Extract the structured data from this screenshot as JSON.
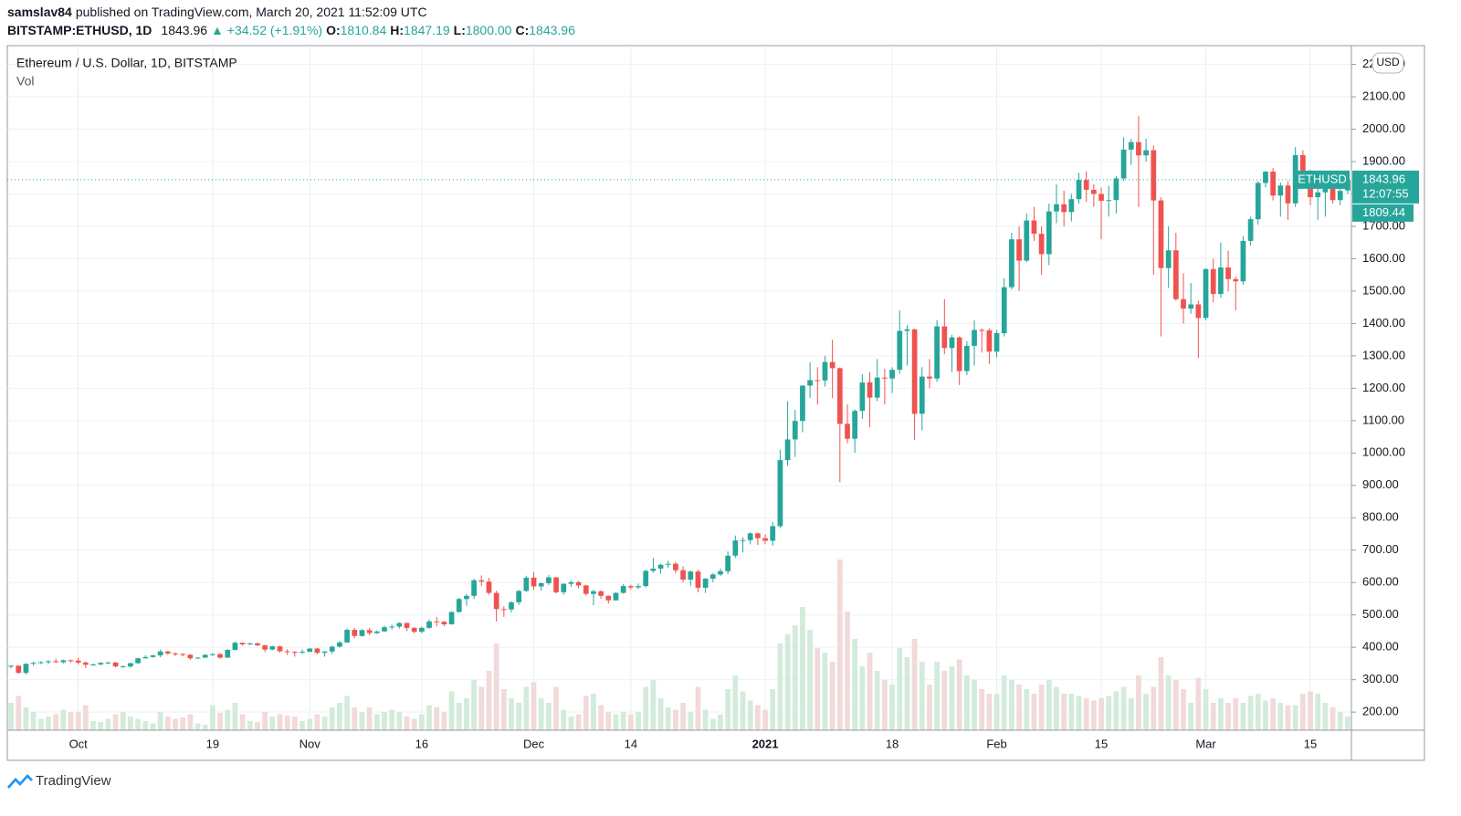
{
  "header": {
    "author": "samslav84",
    "published": "published on TradingView.com, March 20, 2021 11:52:09 UTC",
    "symbol": "BITSTAMP:ETHUSD, 1D",
    "price": "1843.96",
    "change": "▲ +34.52 (+1.91%)",
    "quote": [
      {
        "label": "O:",
        "value": "1810.84"
      },
      {
        "label": "H:",
        "value": "1847.19"
      },
      {
        "label": "L:",
        "value": "1800.00"
      },
      {
        "label": "C:",
        "value": "1843.96"
      }
    ]
  },
  "chart_data": {
    "type": "candlestick",
    "title": "Ethereum / U.S. Dollar, 1D, BITSTAMP",
    "volume_label": "Vol",
    "currency": "USD",
    "symbol_tag": "ETHUSD",
    "last_price": 1843.96,
    "countdown": "12:07:55",
    "prev_close": 1809.44,
    "up_color": "#26a69a",
    "down_color": "#ef5350",
    "volume_up_color": "#d3ebdb",
    "volume_down_color": "#f1dada",
    "grid": true,
    "ylim": [
      144,
      2258
    ],
    "vlim": [
      0,
      1500
    ],
    "yticks": [
      {
        "value": 200,
        "label": "200.00"
      },
      {
        "value": 300,
        "label": "300.00"
      },
      {
        "value": 400,
        "label": "400.00"
      },
      {
        "value": 500,
        "label": "500.00"
      },
      {
        "value": 600,
        "label": "600.00"
      },
      {
        "value": 700,
        "label": "700.00"
      },
      {
        "value": 800,
        "label": "800.00"
      },
      {
        "value": 900,
        "label": "900.00"
      },
      {
        "value": 1000,
        "label": "1000.00"
      },
      {
        "value": 1100,
        "label": "1100.00"
      },
      {
        "value": 1200,
        "label": "1200.00"
      },
      {
        "value": 1300,
        "label": "1300.00"
      },
      {
        "value": 1400,
        "label": "1400.00"
      },
      {
        "value": 1500,
        "label": "1500.00"
      },
      {
        "value": 1600,
        "label": "1600.00"
      },
      {
        "value": 1700,
        "label": "1700.00"
      },
      {
        "value": 1800,
        "label": "1800.00"
      },
      {
        "value": 1900,
        "label": "1900.00"
      },
      {
        "value": 2000,
        "label": "2000.00"
      },
      {
        "value": 2100,
        "label": "2100.00"
      },
      {
        "value": 2200,
        "label": "2200.00"
      }
    ],
    "categories": [
      null,
      null,
      null,
      null,
      null,
      null,
      null,
      null,
      null,
      "Oct",
      null,
      null,
      null,
      null,
      null,
      null,
      null,
      null,
      null,
      null,
      null,
      null,
      null,
      null,
      null,
      null,
      null,
      "19",
      null,
      null,
      null,
      null,
      null,
      null,
      null,
      null,
      null,
      null,
      null,
      null,
      "Nov",
      null,
      null,
      null,
      null,
      null,
      null,
      null,
      null,
      null,
      null,
      null,
      null,
      null,
      null,
      "16",
      null,
      null,
      null,
      null,
      null,
      null,
      null,
      null,
      null,
      null,
      null,
      null,
      null,
      null,
      "Dec",
      null,
      null,
      null,
      null,
      null,
      null,
      null,
      null,
      null,
      null,
      null,
      null,
      "14",
      null,
      null,
      null,
      null,
      null,
      null,
      null,
      null,
      null,
      null,
      null,
      null,
      null,
      null,
      null,
      null,
      null,
      "2021",
      null,
      null,
      null,
      null,
      null,
      null,
      null,
      null,
      null,
      null,
      null,
      null,
      null,
      null,
      null,
      null,
      "18",
      null,
      null,
      null,
      null,
      null,
      null,
      null,
      null,
      null,
      null,
      null,
      null,
      null,
      "Feb",
      null,
      null,
      null,
      null,
      null,
      null,
      null,
      null,
      null,
      null,
      null,
      null,
      null,
      "15",
      null,
      null,
      null,
      null,
      null,
      null,
      null,
      null,
      null,
      null,
      null,
      null,
      null,
      "Mar",
      null,
      null,
      null,
      null,
      null,
      null,
      null,
      null,
      null,
      null,
      null,
      null,
      null,
      "15",
      null,
      null,
      null,
      null,
      null
    ],
    "ohlc": [
      [
        341,
        345,
        335,
        343
      ],
      [
        343,
        344,
        318,
        321
      ],
      [
        321,
        351,
        316,
        349
      ],
      [
        349,
        356,
        343,
        352
      ],
      [
        352,
        357,
        348,
        354
      ],
      [
        354,
        360,
        348,
        357
      ],
      [
        357,
        365,
        352,
        354
      ],
      [
        354,
        362,
        350,
        360
      ],
      [
        360,
        362,
        353,
        359
      ],
      [
        359,
        368,
        347,
        353
      ],
      [
        353,
        356,
        336,
        346
      ],
      [
        346,
        350,
        343,
        347
      ],
      [
        347,
        354,
        345,
        352
      ],
      [
        352,
        355,
        348,
        353
      ],
      [
        353,
        355,
        338,
        341
      ],
      [
        341,
        344,
        337,
        341
      ],
      [
        341,
        352,
        337,
        351
      ],
      [
        351,
        368,
        348,
        366
      ],
      [
        366,
        376,
        365,
        370
      ],
      [
        370,
        377,
        368,
        375
      ],
      [
        375,
        393,
        369,
        387
      ],
      [
        387,
        390,
        377,
        381
      ],
      [
        381,
        384,
        373,
        379
      ],
      [
        379,
        382,
        372,
        377
      ],
      [
        377,
        379,
        361,
        366
      ],
      [
        366,
        369,
        364,
        368
      ],
      [
        368,
        378,
        367,
        377
      ],
      [
        377,
        382,
        373,
        379
      ],
      [
        379,
        382,
        365,
        368
      ],
      [
        368,
        394,
        367,
        392
      ],
      [
        392,
        418,
        390,
        414
      ],
      [
        414,
        415,
        405,
        409
      ],
      [
        409,
        414,
        407,
        412
      ],
      [
        412,
        415,
        404,
        406
      ],
      [
        406,
        408,
        385,
        393
      ],
      [
        393,
        405,
        391,
        403
      ],
      [
        403,
        405,
        383,
        388
      ],
      [
        388,
        394,
        376,
        386
      ],
      [
        386,
        388,
        371,
        383
      ],
      [
        383,
        393,
        380,
        386
      ],
      [
        386,
        398,
        385,
        396
      ],
      [
        396,
        398,
        378,
        383
      ],
      [
        383,
        388,
        371,
        387
      ],
      [
        387,
        405,
        379,
        402
      ],
      [
        402,
        419,
        399,
        415
      ],
      [
        415,
        458,
        413,
        454
      ],
      [
        454,
        460,
        428,
        435
      ],
      [
        435,
        456,
        433,
        453
      ],
      [
        453,
        460,
        437,
        444
      ],
      [
        444,
        452,
        441,
        449
      ],
      [
        449,
        467,
        448,
        462
      ],
      [
        462,
        470,
        455,
        464
      ],
      [
        464,
        477,
        458,
        475
      ],
      [
        475,
        476,
        450,
        460
      ],
      [
        460,
        463,
        443,
        448
      ],
      [
        448,
        464,
        443,
        460
      ],
      [
        460,
        486,
        457,
        480
      ],
      [
        480,
        494,
        465,
        479
      ],
      [
        479,
        481,
        465,
        471
      ],
      [
        471,
        511,
        470,
        509
      ],
      [
        509,
        553,
        507,
        549
      ],
      [
        549,
        565,
        528,
        559
      ],
      [
        559,
        612,
        550,
        607
      ],
      [
        607,
        622,
        589,
        603
      ],
      [
        603,
        614,
        562,
        568
      ],
      [
        568,
        575,
        480,
        518
      ],
      [
        518,
        527,
        494,
        517
      ],
      [
        517,
        542,
        508,
        539
      ],
      [
        539,
        577,
        531,
        574
      ],
      [
        574,
        621,
        571,
        615
      ],
      [
        615,
        632,
        577,
        588
      ],
      [
        588,
        600,
        575,
        598
      ],
      [
        598,
        623,
        592,
        616
      ],
      [
        616,
        617,
        566,
        570
      ],
      [
        570,
        598,
        562,
        596
      ],
      [
        596,
        606,
        587,
        601
      ],
      [
        601,
        605,
        582,
        591
      ],
      [
        591,
        593,
        560,
        565
      ],
      [
        565,
        578,
        530,
        573
      ],
      [
        573,
        576,
        550,
        559
      ],
      [
        559,
        560,
        535,
        545
      ],
      [
        545,
        570,
        544,
        568
      ],
      [
        568,
        595,
        566,
        589
      ],
      [
        589,
        593,
        578,
        585
      ],
      [
        585,
        597,
        580,
        589
      ],
      [
        589,
        640,
        585,
        636
      ],
      [
        636,
        676,
        630,
        643
      ],
      [
        643,
        658,
        628,
        655
      ],
      [
        655,
        667,
        645,
        658
      ],
      [
        658,
        664,
        629,
        638
      ],
      [
        638,
        650,
        600,
        609
      ],
      [
        609,
        637,
        590,
        634
      ],
      [
        634,
        640,
        570,
        584
      ],
      [
        584,
        614,
        568,
        612
      ],
      [
        612,
        629,
        601,
        625
      ],
      [
        625,
        643,
        620,
        635
      ],
      [
        635,
        696,
        626,
        683
      ],
      [
        683,
        745,
        676,
        730
      ],
      [
        730,
        740,
        693,
        731
      ],
      [
        731,
        755,
        718,
        752
      ],
      [
        752,
        754,
        716,
        737
      ],
      [
        737,
        749,
        718,
        729
      ],
      [
        729,
        787,
        714,
        774
      ],
      [
        774,
        1010,
        768,
        978
      ],
      [
        978,
        1160,
        960,
        1042
      ],
      [
        1042,
        1133,
        988,
        1099
      ],
      [
        1099,
        1210,
        1064,
        1208
      ],
      [
        1208,
        1280,
        1170,
        1225
      ],
      [
        1225,
        1265,
        1150,
        1224
      ],
      [
        1224,
        1300,
        1205,
        1281
      ],
      [
        1281,
        1350,
        1170,
        1262
      ],
      [
        1262,
        1264,
        910,
        1090
      ],
      [
        1090,
        1150,
        1030,
        1044
      ],
      [
        1044,
        1135,
        1001,
        1130
      ],
      [
        1130,
        1243,
        1105,
        1218
      ],
      [
        1218,
        1250,
        1080,
        1171
      ],
      [
        1171,
        1290,
        1160,
        1233
      ],
      [
        1233,
        1260,
        1150,
        1230
      ],
      [
        1230,
        1265,
        1185,
        1257
      ],
      [
        1257,
        1440,
        1245,
        1377
      ],
      [
        1377,
        1395,
        1270,
        1382
      ],
      [
        1382,
        1384,
        1040,
        1121
      ],
      [
        1121,
        1265,
        1070,
        1236
      ],
      [
        1236,
        1290,
        1200,
        1230
      ],
      [
        1230,
        1410,
        1220,
        1391
      ],
      [
        1391,
        1475,
        1305,
        1324
      ],
      [
        1324,
        1365,
        1250,
        1357
      ],
      [
        1357,
        1360,
        1210,
        1253
      ],
      [
        1253,
        1345,
        1240,
        1331
      ],
      [
        1331,
        1410,
        1270,
        1380
      ],
      [
        1380,
        1385,
        1310,
        1379
      ],
      [
        1379,
        1385,
        1275,
        1313
      ],
      [
        1313,
        1380,
        1295,
        1370
      ],
      [
        1370,
        1540,
        1360,
        1512
      ],
      [
        1512,
        1680,
        1505,
        1660
      ],
      [
        1660,
        1700,
        1500,
        1594
      ],
      [
        1594,
        1740,
        1590,
        1718
      ],
      [
        1718,
        1760,
        1655,
        1677
      ],
      [
        1677,
        1700,
        1550,
        1614
      ],
      [
        1614,
        1770,
        1580,
        1746
      ],
      [
        1746,
        1830,
        1710,
        1768
      ],
      [
        1768,
        1810,
        1700,
        1744
      ],
      [
        1744,
        1800,
        1715,
        1784
      ],
      [
        1784,
        1865,
        1770,
        1843
      ],
      [
        1843,
        1870,
        1775,
        1813
      ],
      [
        1813,
        1830,
        1760,
        1800
      ],
      [
        1800,
        1820,
        1660,
        1779
      ],
      [
        1779,
        1825,
        1730,
        1781
      ],
      [
        1781,
        1855,
        1740,
        1848
      ],
      [
        1848,
        1975,
        1840,
        1937
      ],
      [
        1937,
        1970,
        1890,
        1960
      ],
      [
        1960,
        2040,
        1760,
        1919
      ],
      [
        1919,
        1970,
        1900,
        1935
      ],
      [
        1935,
        1950,
        1550,
        1780
      ],
      [
        1780,
        1790,
        1360,
        1571
      ],
      [
        1571,
        1700,
        1510,
        1626
      ],
      [
        1626,
        1680,
        1470,
        1475
      ],
      [
        1475,
        1555,
        1400,
        1446
      ],
      [
        1446,
        1525,
        1430,
        1459
      ],
      [
        1459,
        1470,
        1293,
        1417
      ],
      [
        1417,
        1570,
        1410,
        1568
      ],
      [
        1568,
        1600,
        1465,
        1491
      ],
      [
        1491,
        1650,
        1480,
        1573
      ],
      [
        1573,
        1625,
        1500,
        1537
      ],
      [
        1537,
        1545,
        1440,
        1530
      ],
      [
        1530,
        1670,
        1520,
        1655
      ],
      [
        1655,
        1730,
        1640,
        1722
      ],
      [
        1722,
        1840,
        1705,
        1834
      ],
      [
        1834,
        1870,
        1820,
        1869
      ],
      [
        1869,
        1880,
        1780,
        1795
      ],
      [
        1795,
        1835,
        1730,
        1826
      ],
      [
        1826,
        1840,
        1720,
        1771
      ],
      [
        1771,
        1945,
        1760,
        1920
      ],
      [
        1920,
        1935,
        1830,
        1854
      ],
      [
        1854,
        1875,
        1765,
        1790
      ],
      [
        1790,
        1820,
        1720,
        1805
      ],
      [
        1805,
        1830,
        1730,
        1824
      ],
      [
        1824,
        1835,
        1770,
        1781
      ],
      [
        1781,
        1835,
        1765,
        1809.44
      ],
      [
        1810.84,
        1847.19,
        1800,
        1843.96
      ]
    ],
    "volume": [
      60,
      75,
      50,
      40,
      25,
      30,
      35,
      45,
      40,
      40,
      55,
      20,
      18,
      25,
      35,
      40,
      30,
      25,
      20,
      15,
      40,
      30,
      25,
      28,
      35,
      15,
      12,
      55,
      38,
      45,
      60,
      35,
      20,
      18,
      40,
      30,
      35,
      32,
      30,
      20,
      25,
      35,
      30,
      50,
      60,
      75,
      50,
      40,
      50,
      35,
      40,
      45,
      40,
      30,
      25,
      35,
      55,
      50,
      40,
      85,
      60,
      70,
      110,
      95,
      130,
      190,
      90,
      70,
      60,
      95,
      105,
      70,
      60,
      95,
      45,
      30,
      35,
      75,
      80,
      55,
      40,
      35,
      40,
      35,
      40,
      95,
      110,
      70,
      50,
      45,
      60,
      40,
      95,
      45,
      25,
      35,
      90,
      120,
      85,
      65,
      55,
      45,
      90,
      190,
      210,
      230,
      270,
      220,
      180,
      170,
      150,
      374,
      260,
      200,
      140,
      170,
      130,
      110,
      100,
      180,
      160,
      200,
      150,
      100,
      150,
      130,
      140,
      155,
      120,
      110,
      90,
      80,
      80,
      120,
      110,
      100,
      90,
      80,
      100,
      110,
      95,
      80,
      80,
      75,
      70,
      65,
      70,
      75,
      85,
      95,
      70,
      120,
      80,
      95,
      160,
      120,
      110,
      90,
      60,
      115,
      90,
      60,
      70,
      60,
      70,
      60,
      75,
      80,
      65,
      70,
      60,
      55,
      55,
      80,
      85,
      80,
      60,
      50,
      40,
      30
    ]
  },
  "footer": {
    "brand": "TradingView"
  }
}
